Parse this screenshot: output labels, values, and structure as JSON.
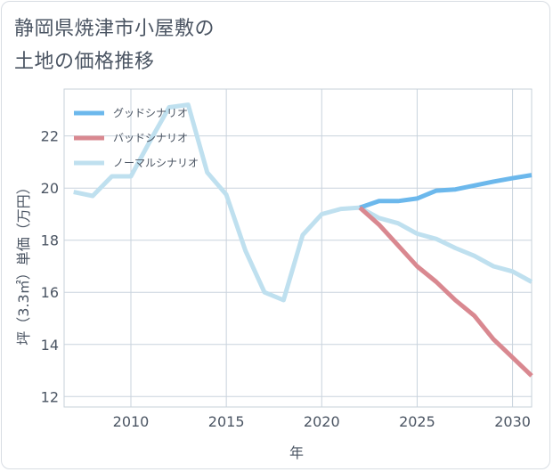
{
  "title": {
    "line1": "静岡県焼津市小屋敷の",
    "line2": "土地の価格推移"
  },
  "chart_data": {
    "type": "line",
    "xlabel": "年",
    "ylabel": "坪（3.3㎡）単価（万円）",
    "xlim": [
      2006.5,
      2031
    ],
    "ylim": [
      11.6,
      23.8
    ],
    "xticks": [
      2010,
      2015,
      2020,
      2025,
      2030
    ],
    "yticks": [
      12,
      14,
      16,
      18,
      20,
      22
    ],
    "grid": true,
    "legend_position": "top-left",
    "series": [
      {
        "name": "グッドシナリオ",
        "color": "#6cb8ec",
        "x": [
          2022,
          2023,
          2024,
          2025,
          2026,
          2027,
          2028,
          2029,
          2030,
          2031
        ],
        "y": [
          19.25,
          19.5,
          19.5,
          19.6,
          19.9,
          19.95,
          20.1,
          20.25,
          20.38,
          20.5
        ]
      },
      {
        "name": "バッドシナリオ",
        "color": "#d98890",
        "x": [
          2022,
          2023,
          2024,
          2025,
          2026,
          2027,
          2028,
          2029,
          2030,
          2031
        ],
        "y": [
          19.25,
          18.6,
          17.8,
          17.0,
          16.4,
          15.7,
          15.1,
          14.2,
          13.5,
          12.8
        ]
      },
      {
        "name": "ノーマルシナリオ",
        "color": "#bfe0ef",
        "x": [
          2007,
          2008,
          2009,
          2010,
          2011,
          2012,
          2013,
          2014,
          2015,
          2016,
          2017,
          2018,
          2019,
          2020,
          2021,
          2022,
          2023,
          2024,
          2025,
          2026,
          2027,
          2028,
          2029,
          2030,
          2031
        ],
        "y": [
          19.85,
          19.7,
          20.45,
          20.45,
          21.8,
          23.1,
          23.2,
          20.6,
          19.75,
          17.6,
          16.0,
          15.7,
          18.2,
          19.0,
          19.2,
          19.25,
          18.85,
          18.65,
          18.25,
          18.05,
          17.7,
          17.4,
          17.0,
          16.8,
          16.4
        ]
      }
    ]
  }
}
